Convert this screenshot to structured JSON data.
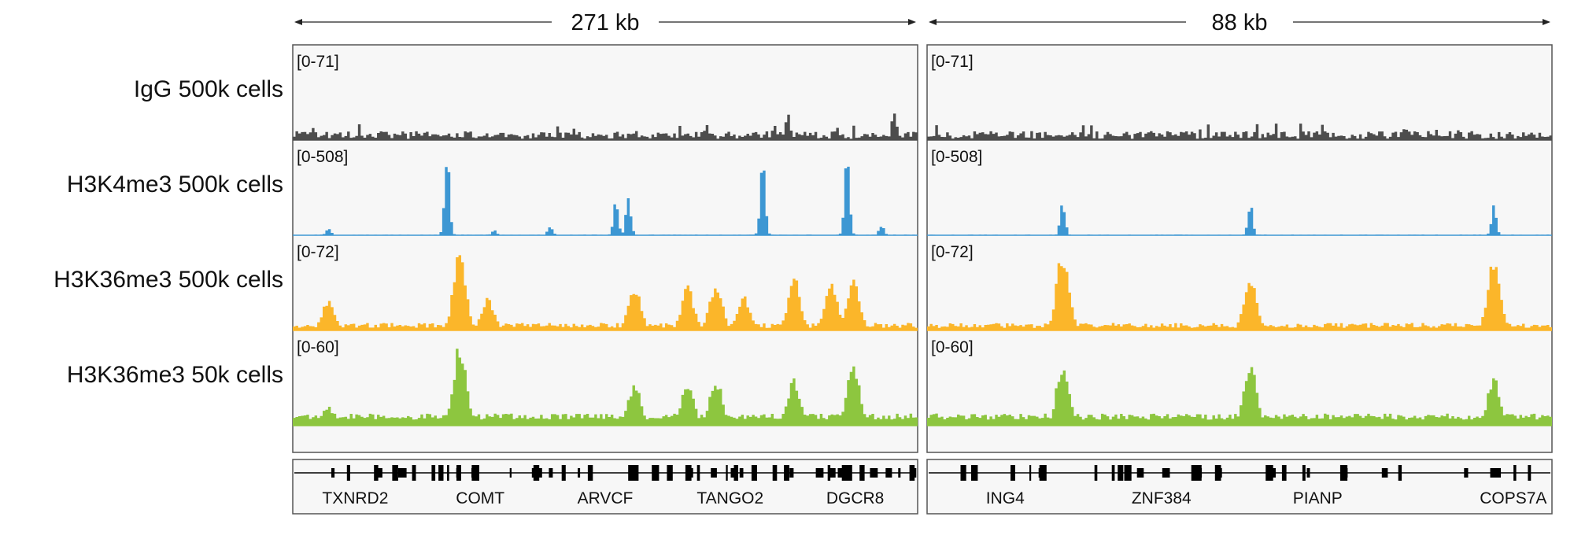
{
  "chart_data": {
    "type": "area",
    "colors": {
      "IgG": "#4d4d4d",
      "H3K4me3": "#3d97d3",
      "H3K36me3_500k": "#fbb62a",
      "H3K36me3_50k": "#8dc63f",
      "panel_bg": "#f6f6f6",
      "gene": "#000000"
    },
    "tracks": [
      {
        "key": "IgG",
        "label": "IgG 500k cells",
        "range": "[0-71]"
      },
      {
        "key": "H3K4me3",
        "label": "H3K4me3 500k cells",
        "range": "[0-508]"
      },
      {
        "key": "H3K36me3_500k",
        "label": "H3K36me3 500k cells",
        "range": "[0-72]"
      },
      {
        "key": "H3K36me3_50k",
        "label": "H3K36me3 50k cells",
        "range": "[0-60]"
      }
    ],
    "regions": [
      {
        "size_label": "271 kb",
        "genes": [
          "TXNRD2",
          "COMT",
          "ARVCF",
          "TANGO2",
          "DGCR8"
        ],
        "peaks": {
          "IgG": [
            [
              0.03,
              10
            ],
            [
              0.79,
              24
            ],
            [
              0.96,
              25
            ]
          ],
          "H3K4me3": [
            [
              0.055,
              40
            ],
            [
              0.245,
              490
            ],
            [
              0.32,
              30
            ],
            [
              0.41,
              60
            ],
            [
              0.515,
              200
            ],
            [
              0.535,
              220
            ],
            [
              0.75,
              460
            ],
            [
              0.885,
              470
            ],
            [
              0.94,
              60
            ]
          ],
          "H3K36me3_500k": [
            [
              0.055,
              27
            ],
            [
              0.265,
              66
            ],
            [
              0.31,
              28
            ],
            [
              0.545,
              38
            ],
            [
              0.63,
              36
            ],
            [
              0.675,
              40
            ],
            [
              0.72,
              28
            ],
            [
              0.8,
              44
            ],
            [
              0.86,
              40
            ],
            [
              0.895,
              44
            ]
          ],
          "H3K36me3_50k": [
            [
              0.055,
              13
            ],
            [
              0.265,
              58
            ],
            [
              0.545,
              30
            ],
            [
              0.63,
              32
            ],
            [
              0.675,
              33
            ],
            [
              0.8,
              34
            ],
            [
              0.895,
              46
            ]
          ]
        }
      },
      {
        "size_label": "88 kb",
        "genes": [
          "ING4",
          "ZNF384",
          "PIANP",
          "COPS7A"
        ],
        "peaks": {
          "IgG": [
            [
              0.1,
              9
            ],
            [
              0.76,
              10
            ],
            [
              0.93,
              8
            ]
          ],
          "H3K4me3": [
            [
              0.215,
              190
            ],
            [
              0.515,
              190
            ],
            [
              0.905,
              170
            ]
          ],
          "H3K36me3_500k": [
            [
              0.215,
              68
            ],
            [
              0.515,
              48
            ],
            [
              0.905,
              62
            ]
          ],
          "H3K36me3_50k": [
            [
              0.215,
              45
            ],
            [
              0.515,
              46
            ],
            [
              0.905,
              34
            ]
          ]
        }
      }
    ]
  }
}
